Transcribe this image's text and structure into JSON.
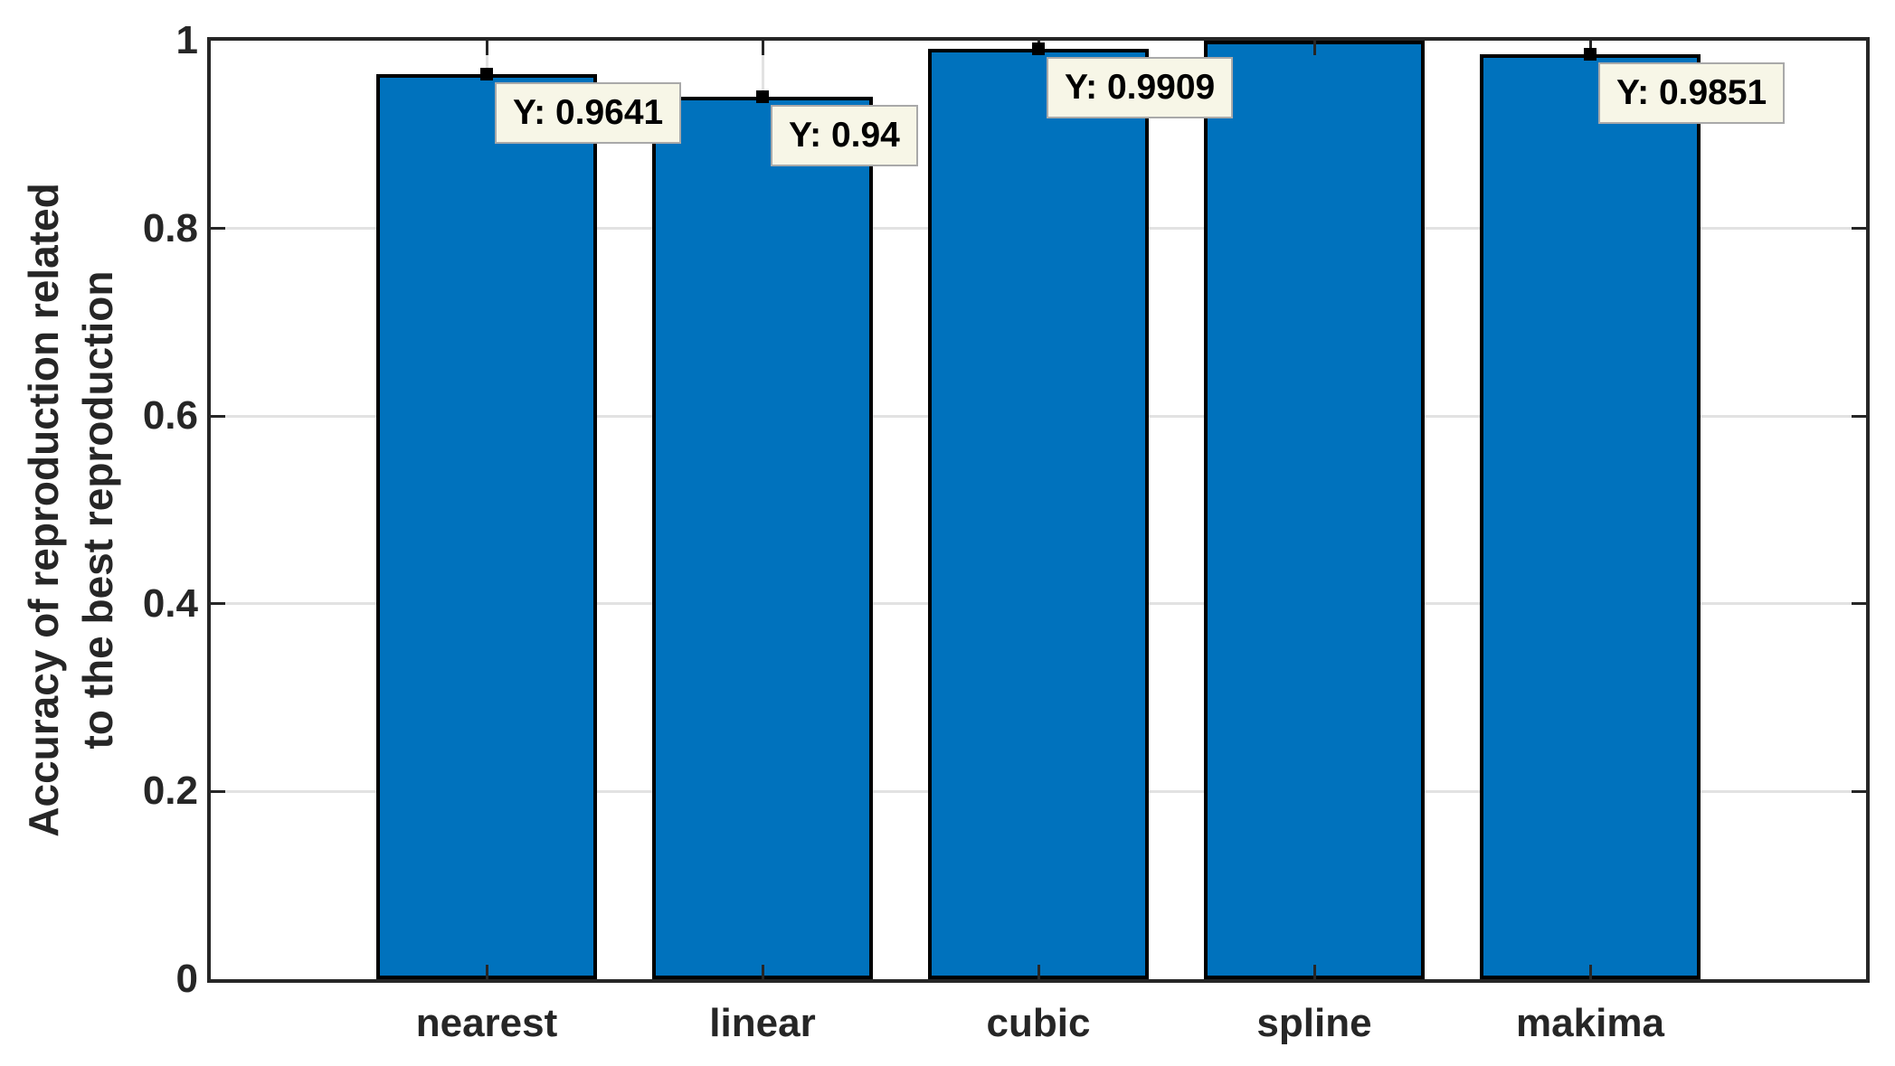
{
  "chart_data": {
    "type": "bar",
    "title": "",
    "xlabel": "",
    "ylabel_lines": [
      "Accuracy of reproduction related",
      "to the best reproduction"
    ],
    "categories": [
      "nearest",
      "linear",
      "cubic",
      "spline",
      "makima"
    ],
    "values": [
      0.9641,
      0.94,
      0.9909,
      1,
      0.9851
    ],
    "ylim": [
      0,
      1
    ],
    "yticks": [
      0,
      0.2,
      0.4,
      0.6,
      0.8,
      1
    ],
    "ytick_labels": [
      "0",
      "0.2",
      "0.4",
      "0.6",
      "0.8",
      "1"
    ],
    "grid": "on",
    "legend": "none",
    "bar_width_fraction": 0.8,
    "bar_color": "#0072BD",
    "bar_edge_color": "#000000",
    "axis_color": "#262626",
    "grid_color": "#E2E2E2",
    "datatip_bg": "#F7F6E7",
    "datatips": [
      {
        "category": "nearest",
        "label": "Y: 0.9641",
        "value": 0.9641
      },
      {
        "category": "linear",
        "label": "Y: 0.94",
        "value": 0.94
      },
      {
        "category": "cubic",
        "label": "Y: 0.9909",
        "value": 0.9909
      },
      {
        "category": "makima",
        "label": "Y: 0.9851",
        "value": 0.9851
      }
    ]
  }
}
